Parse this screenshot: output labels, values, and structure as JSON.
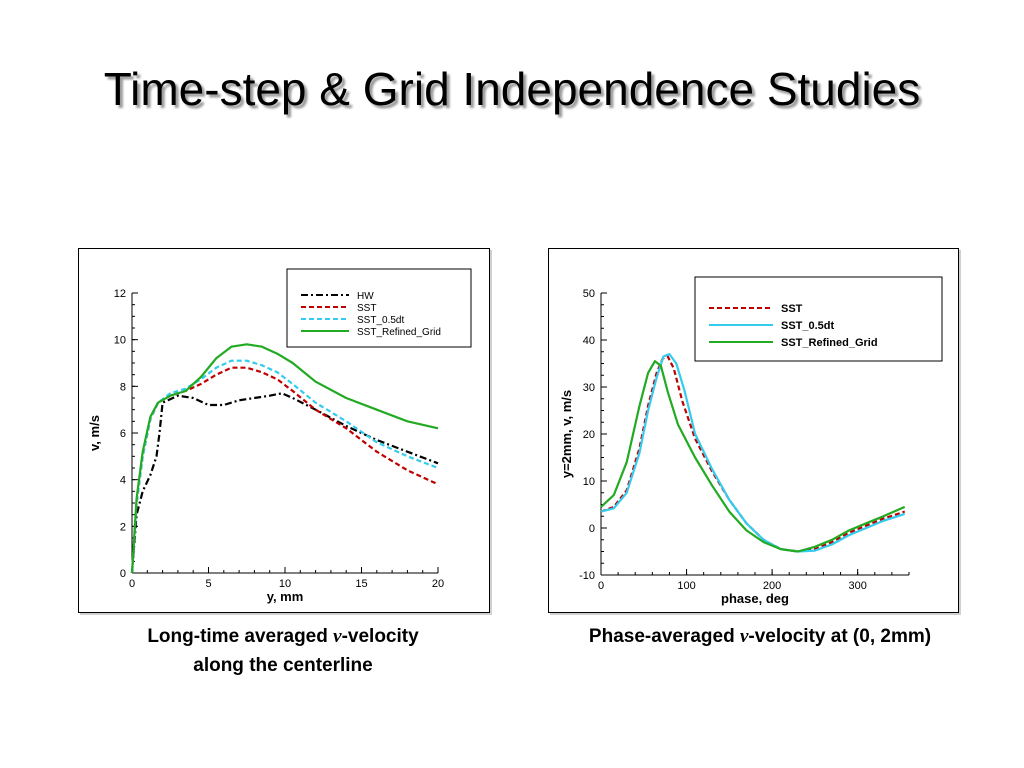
{
  "slide": {
    "title": "Time-step & Grid Independence Studies"
  },
  "captions": {
    "left": {
      "prefix": "Long-time averaged ",
      "var": "v",
      "suffix": "-velocity",
      "line2": "along the centerline"
    },
    "right": {
      "prefix": "Phase-averaged ",
      "var": "v",
      "suffix": "-velocity at (0, 2mm)"
    }
  },
  "chart_data": [
    {
      "type": "line",
      "xlabel": "y, mm",
      "ylabel": "v, m/s",
      "xlim": [
        0,
        20
      ],
      "ylim": [
        0,
        12
      ],
      "xticks": [
        0,
        5,
        10,
        15,
        20
      ],
      "yticks": [
        0,
        2,
        4,
        6,
        8,
        10,
        12
      ],
      "legend_position": "top-right",
      "series": [
        {
          "name": "HW",
          "color": "#000000",
          "dash": "dashdot",
          "x": [
            0,
            0.3,
            0.7,
            1.2,
            1.6,
            1.8,
            2.0,
            3.0,
            4.0,
            5.0,
            6.0,
            7.0,
            8.0,
            9.0,
            9.8,
            10.5,
            12,
            14,
            16,
            18,
            20
          ],
          "y": [
            0,
            2.5,
            3.5,
            4.2,
            5.0,
            6.0,
            7.3,
            7.6,
            7.5,
            7.2,
            7.2,
            7.4,
            7.5,
            7.6,
            7.7,
            7.5,
            7.0,
            6.3,
            5.7,
            5.2,
            4.7
          ]
        },
        {
          "name": "SST",
          "color": "#c00000",
          "dash": "dash",
          "x": [
            0,
            0.3,
            0.7,
            1.2,
            1.7,
            2.5,
            3.5,
            4.5,
            5.5,
            6.5,
            7.5,
            8.5,
            9.5,
            10.5,
            12,
            14,
            16,
            18,
            20
          ],
          "y": [
            0,
            3.0,
            5.0,
            6.6,
            7.3,
            7.6,
            7.8,
            8.1,
            8.5,
            8.8,
            8.8,
            8.6,
            8.3,
            7.8,
            7.0,
            6.2,
            5.2,
            4.4,
            3.8
          ]
        },
        {
          "name": "SST_0.5dt",
          "color": "#33ccee",
          "dash": "dash",
          "x": [
            0,
            0.3,
            0.7,
            1.2,
            1.7,
            2.5,
            3.5,
            4.5,
            5.5,
            6.5,
            7.5,
            8.5,
            9.5,
            10.5,
            12,
            14,
            16,
            18,
            20
          ],
          "y": [
            0,
            3.0,
            5.0,
            6.6,
            7.3,
            7.7,
            7.9,
            8.3,
            8.8,
            9.1,
            9.1,
            8.9,
            8.6,
            8.1,
            7.3,
            6.5,
            5.6,
            5.0,
            4.5
          ]
        },
        {
          "name": "SST_Refined_Grid",
          "color": "#22aa22",
          "dash": "solid",
          "x": [
            0,
            0.3,
            0.7,
            1.2,
            1.7,
            2.5,
            3.5,
            4.5,
            5.5,
            6.5,
            7.5,
            8.5,
            9.5,
            10.5,
            12,
            14,
            16,
            18,
            20
          ],
          "y": [
            0,
            3.2,
            5.2,
            6.7,
            7.3,
            7.6,
            7.8,
            8.4,
            9.2,
            9.7,
            9.8,
            9.7,
            9.4,
            9.0,
            8.2,
            7.5,
            7.0,
            6.5,
            6.2
          ]
        }
      ]
    },
    {
      "type": "line",
      "xlabel": "phase, deg",
      "ylabel": "y=2mm, v, m/s",
      "xlim": [
        0,
        360
      ],
      "ylim": [
        -10,
        50
      ],
      "xticks": [
        0,
        100,
        200,
        300
      ],
      "yticks": [
        -10,
        0,
        10,
        20,
        30,
        40,
        50
      ],
      "legend_position": "top-right",
      "series": [
        {
          "name": "SST",
          "color": "#c00000",
          "dash": "dash",
          "x": [
            0,
            15,
            30,
            45,
            55,
            65,
            72,
            78,
            85,
            95,
            110,
            130,
            150,
            170,
            190,
            210,
            230,
            250,
            270,
            290,
            310,
            330,
            355
          ],
          "y": [
            3.5,
            4.5,
            8,
            17,
            26,
            33,
            36,
            36.5,
            34,
            27,
            19,
            12,
            6,
            1,
            -2.5,
            -4.5,
            -5,
            -4.5,
            -3,
            -1,
            0.5,
            2,
            3.5
          ]
        },
        {
          "name": "SST_0.5dt",
          "color": "#33ccee",
          "dash": "solid",
          "x": [
            0,
            15,
            30,
            45,
            55,
            65,
            73,
            80,
            88,
            98,
            110,
            130,
            150,
            170,
            190,
            210,
            230,
            250,
            270,
            290,
            310,
            330,
            355
          ],
          "y": [
            3.5,
            4.2,
            7.5,
            16,
            25,
            32,
            36.5,
            37,
            35,
            29,
            20,
            12.5,
            6,
            1,
            -2.5,
            -4.5,
            -5,
            -4.8,
            -3.5,
            -1.5,
            0,
            1.5,
            3
          ]
        },
        {
          "name": "SST_Refined_Grid",
          "color": "#22aa22",
          "dash": "solid",
          "x": [
            0,
            15,
            30,
            45,
            55,
            63,
            70,
            78,
            90,
            110,
            130,
            150,
            170,
            190,
            210,
            230,
            250,
            270,
            290,
            310,
            330,
            355
          ],
          "y": [
            4.5,
            7,
            14,
            26,
            33,
            35.5,
            34.5,
            29,
            22,
            15,
            9,
            3.5,
            -0.5,
            -3,
            -4.5,
            -5,
            -4,
            -2.5,
            -0.5,
            1,
            2.5,
            4.5
          ]
        }
      ]
    }
  ]
}
